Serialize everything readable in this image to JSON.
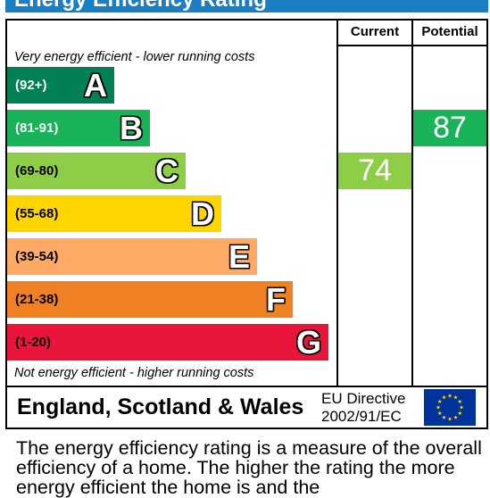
{
  "header": {
    "title": "Energy Efficiency Rating"
  },
  "columns": {
    "current": "Current",
    "potential": "Potential"
  },
  "notes": {
    "top": "Very energy efficient - lower running costs",
    "bottom": "Not energy efficient - higher running costs"
  },
  "chart_data": {
    "type": "bar",
    "title": "Energy Efficiency Rating",
    "categories": [
      "A",
      "B",
      "C",
      "D",
      "E",
      "F",
      "G"
    ],
    "bands": [
      {
        "letter": "A",
        "range": "(92+)",
        "color": "#008054",
        "range_text_color": "#ffffff"
      },
      {
        "letter": "B",
        "range": "(81-91)",
        "color": "#19b459",
        "range_text_color": "#ffffff"
      },
      {
        "letter": "C",
        "range": "(69-80)",
        "color": "#8dce46",
        "range_text_color": "#000000"
      },
      {
        "letter": "D",
        "range": "(55-68)",
        "color": "#ffd500",
        "range_text_color": "#000000"
      },
      {
        "letter": "E",
        "range": "(39-54)",
        "color": "#fcaa65",
        "range_text_color": "#000000"
      },
      {
        "letter": "F",
        "range": "(21-38)",
        "color": "#ef8023",
        "range_text_color": "#000000"
      },
      {
        "letter": "G",
        "range": "(1-20)",
        "color": "#e9153b",
        "range_text_color": "#000000"
      }
    ],
    "current": {
      "value": 74,
      "band": "C",
      "color": "#8dce46"
    },
    "potential": {
      "value": 87,
      "band": "B",
      "color": "#19b459"
    }
  },
  "footer": {
    "country": "England, Scotland & Wales",
    "directive_line1": "EU Directive",
    "directive_line2": "2002/91/EC",
    "flag_colors": {
      "background": "#003399",
      "stars": "#ffcc00"
    }
  },
  "description": "The energy efficiency rating is a measure of the overall efficiency of a home. The higher the rating the more energy efficient the home is and the"
}
